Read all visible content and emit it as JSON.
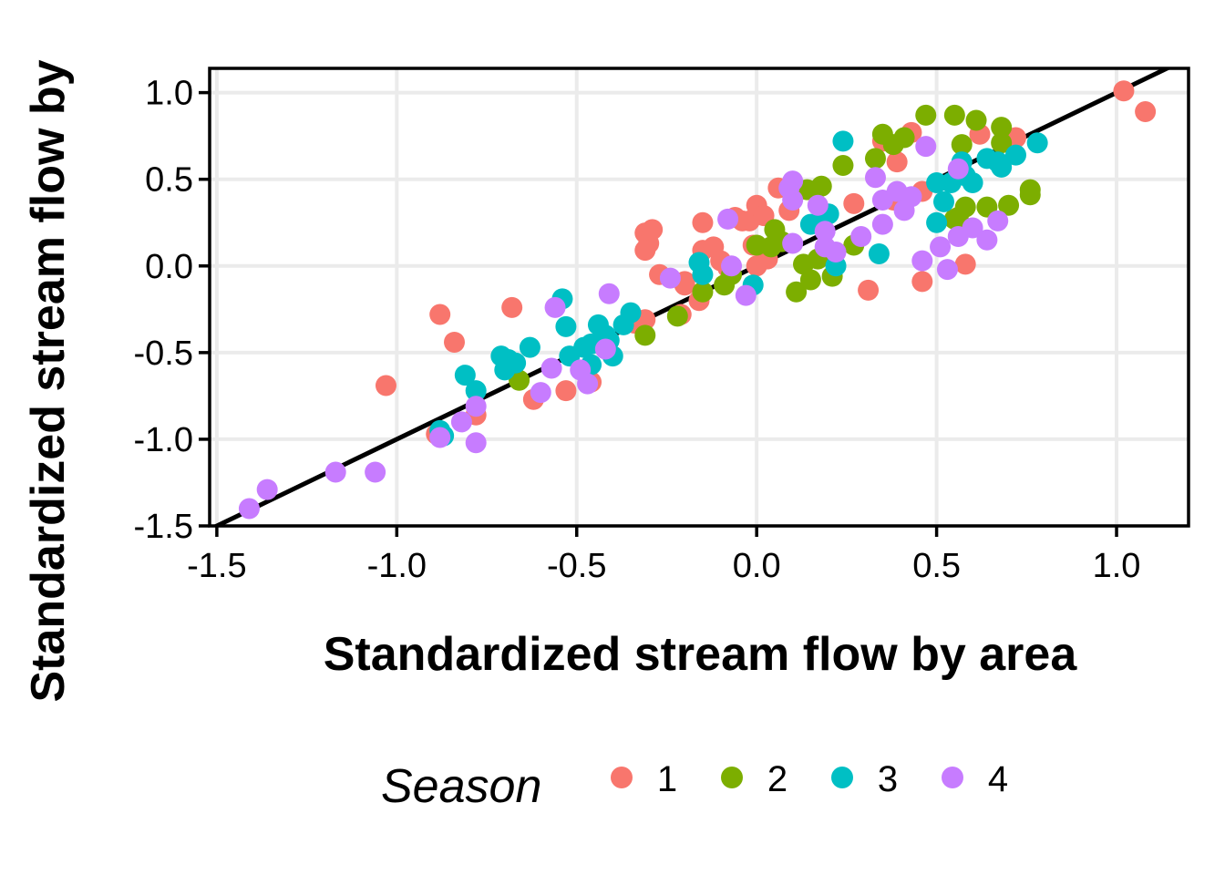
{
  "chart_data": {
    "type": "scatter",
    "title": "",
    "xlabel": "Standardized stream flow by area",
    "ylabel": "Standardized stream flow by",
    "xlim": [
      -1.52,
      1.2
    ],
    "ylim": [
      -1.5,
      1.14
    ],
    "x_ticks": [
      "-1.5",
      "-1.0",
      "-0.5",
      "0.0",
      "0.5",
      "1.0"
    ],
    "y_ticks": [
      "-1.5",
      "-1.0",
      "-0.5",
      "0.0",
      "0.5",
      "1.0"
    ],
    "grid": true,
    "reference_line": {
      "type": "identity",
      "slope": 1,
      "intercept": 0,
      "color": "#000000"
    },
    "legend": {
      "title": "Season",
      "position": "bottom"
    },
    "series": [
      {
        "name": "1",
        "color": "#F8766D",
        "points": [
          [
            -1.03,
            -0.69
          ],
          [
            -0.88,
            -0.28
          ],
          [
            -0.84,
            -0.44
          ],
          [
            -0.89,
            -0.97
          ],
          [
            -0.78,
            -0.86
          ],
          [
            -0.68,
            -0.24
          ],
          [
            -0.62,
            -0.77
          ],
          [
            -0.53,
            -0.72
          ],
          [
            -0.46,
            -0.67
          ],
          [
            -0.31,
            0.19
          ],
          [
            -0.3,
            0.13
          ],
          [
            -0.31,
            0.09
          ],
          [
            -0.31,
            -0.31
          ],
          [
            -0.34,
            -0.33
          ],
          [
            -0.29,
            0.21
          ],
          [
            -0.27,
            -0.05
          ],
          [
            -0.21,
            -0.28
          ],
          [
            -0.2,
            -0.09
          ],
          [
            -0.2,
            -0.11
          ],
          [
            -0.15,
            0.25
          ],
          [
            -0.15,
            0.09
          ],
          [
            -0.12,
            0.11
          ],
          [
            -0.1,
            0.03
          ],
          [
            -0.08,
            -0.01
          ],
          [
            -0.06,
            0.28
          ],
          [
            -0.04,
            0.26
          ],
          [
            -0.02,
            0.26
          ],
          [
            -0.01,
            0.12
          ],
          [
            0.0,
            0.35
          ],
          [
            0.02,
            0.29
          ],
          [
            0.03,
            0.04
          ],
          [
            0.06,
            0.45
          ],
          [
            0.09,
            0.32
          ],
          [
            0.27,
            0.36
          ],
          [
            0.31,
            -0.14
          ],
          [
            0.35,
            0.72
          ],
          [
            0.39,
            0.6
          ],
          [
            0.43,
            0.77
          ],
          [
            0.46,
            -0.09
          ],
          [
            0.58,
            0.01
          ],
          [
            0.62,
            0.76
          ],
          [
            0.72,
            0.74
          ],
          [
            0.38,
            0.38
          ],
          [
            0.46,
            0.43
          ],
          [
            1.02,
            1.01
          ],
          [
            1.08,
            0.89
          ],
          [
            -0.16,
            -0.2
          ],
          [
            0.0,
            0.0
          ]
        ]
      },
      {
        "name": "2",
        "color": "#7CAE00",
        "points": [
          [
            -0.66,
            -0.66
          ],
          [
            -0.31,
            -0.4
          ],
          [
            -0.22,
            -0.29
          ],
          [
            -0.15,
            -0.15
          ],
          [
            -0.09,
            -0.11
          ],
          [
            -0.07,
            -0.05
          ],
          [
            0.0,
            0.12
          ],
          [
            0.04,
            0.11
          ],
          [
            0.05,
            0.21
          ],
          [
            0.07,
            0.14
          ],
          [
            0.11,
            -0.15
          ],
          [
            0.13,
            0.01
          ],
          [
            0.14,
            0.44
          ],
          [
            0.15,
            -0.08
          ],
          [
            0.18,
            0.46
          ],
          [
            0.21,
            -0.06
          ],
          [
            0.24,
            0.58
          ],
          [
            0.27,
            0.12
          ],
          [
            0.33,
            0.62
          ],
          [
            0.35,
            0.76
          ],
          [
            0.38,
            0.7
          ],
          [
            0.41,
            0.74
          ],
          [
            0.47,
            0.87
          ],
          [
            0.55,
            0.87
          ],
          [
            0.56,
            0.28
          ],
          [
            0.57,
            0.7
          ],
          [
            0.58,
            0.34
          ],
          [
            0.61,
            0.84
          ],
          [
            0.64,
            0.34
          ],
          [
            0.68,
            0.8
          ],
          [
            0.68,
            0.71
          ],
          [
            0.7,
            0.35
          ],
          [
            0.76,
            0.41
          ],
          [
            0.76,
            0.44
          ],
          [
            0.55,
            0.27
          ],
          [
            0.17,
            0.04
          ]
        ]
      },
      {
        "name": "3",
        "color": "#00BFC4",
        "points": [
          [
            -0.88,
            -0.95
          ],
          [
            -0.87,
            -0.98
          ],
          [
            -0.81,
            -0.63
          ],
          [
            -0.78,
            -0.72
          ],
          [
            -0.71,
            -0.52
          ],
          [
            -0.7,
            -0.6
          ],
          [
            -0.67,
            -0.56
          ],
          [
            -0.63,
            -0.47
          ],
          [
            -0.54,
            -0.19
          ],
          [
            -0.53,
            -0.35
          ],
          [
            -0.52,
            -0.52
          ],
          [
            -0.48,
            -0.47
          ],
          [
            -0.46,
            -0.57
          ],
          [
            -0.46,
            -0.45
          ],
          [
            -0.44,
            -0.34
          ],
          [
            -0.42,
            -0.4
          ],
          [
            -0.41,
            -0.43
          ],
          [
            -0.4,
            -0.52
          ],
          [
            -0.37,
            -0.34
          ],
          [
            -0.35,
            -0.27
          ],
          [
            -0.16,
            0.02
          ],
          [
            -0.15,
            -0.05
          ],
          [
            -0.01,
            -0.11
          ],
          [
            0.15,
            0.24
          ],
          [
            0.18,
            0.27
          ],
          [
            0.2,
            0.3
          ],
          [
            0.22,
            0.0
          ],
          [
            0.24,
            0.72
          ],
          [
            0.34,
            0.07
          ],
          [
            0.5,
            0.25
          ],
          [
            0.5,
            0.48
          ],
          [
            0.52,
            0.37
          ],
          [
            0.54,
            0.48
          ],
          [
            0.56,
            0.53
          ],
          [
            0.57,
            0.6
          ],
          [
            0.6,
            0.48
          ],
          [
            0.64,
            0.62
          ],
          [
            0.67,
            0.6
          ],
          [
            0.68,
            0.57
          ],
          [
            0.72,
            0.64
          ],
          [
            0.78,
            0.71
          ],
          [
            0.58,
            0.52
          ],
          [
            -0.69,
            -0.54
          ]
        ]
      },
      {
        "name": "4",
        "color": "#C77CFF",
        "points": [
          [
            -1.41,
            -1.4
          ],
          [
            -1.36,
            -1.29
          ],
          [
            -1.17,
            -1.19
          ],
          [
            -1.06,
            -1.19
          ],
          [
            -0.88,
            -0.99
          ],
          [
            -0.82,
            -0.9
          ],
          [
            -0.78,
            -0.81
          ],
          [
            -0.78,
            -1.02
          ],
          [
            -0.6,
            -0.73
          ],
          [
            -0.57,
            -0.59
          ],
          [
            -0.56,
            -0.24
          ],
          [
            -0.49,
            -0.6
          ],
          [
            -0.47,
            -0.68
          ],
          [
            -0.42,
            -0.48
          ],
          [
            -0.41,
            -0.16
          ],
          [
            -0.24,
            -0.07
          ],
          [
            -0.08,
            0.27
          ],
          [
            -0.03,
            -0.17
          ],
          [
            0.09,
            0.45
          ],
          [
            0.1,
            0.49
          ],
          [
            0.1,
            0.38
          ],
          [
            0.1,
            0.13
          ],
          [
            0.17,
            0.35
          ],
          [
            0.19,
            0.11
          ],
          [
            0.19,
            0.2
          ],
          [
            0.22,
            0.08
          ],
          [
            0.29,
            0.17
          ],
          [
            0.33,
            0.51
          ],
          [
            0.35,
            0.38
          ],
          [
            0.39,
            0.43
          ],
          [
            0.41,
            0.32
          ],
          [
            0.43,
            0.4
          ],
          [
            0.46,
            0.03
          ],
          [
            0.47,
            0.69
          ],
          [
            0.51,
            0.11
          ],
          [
            0.53,
            -0.02
          ],
          [
            0.56,
            0.17
          ],
          [
            0.56,
            0.56
          ],
          [
            0.6,
            0.22
          ],
          [
            0.64,
            0.15
          ],
          [
            0.67,
            0.26
          ],
          [
            0.35,
            0.24
          ],
          [
            -0.07,
            0.0
          ]
        ]
      }
    ]
  }
}
